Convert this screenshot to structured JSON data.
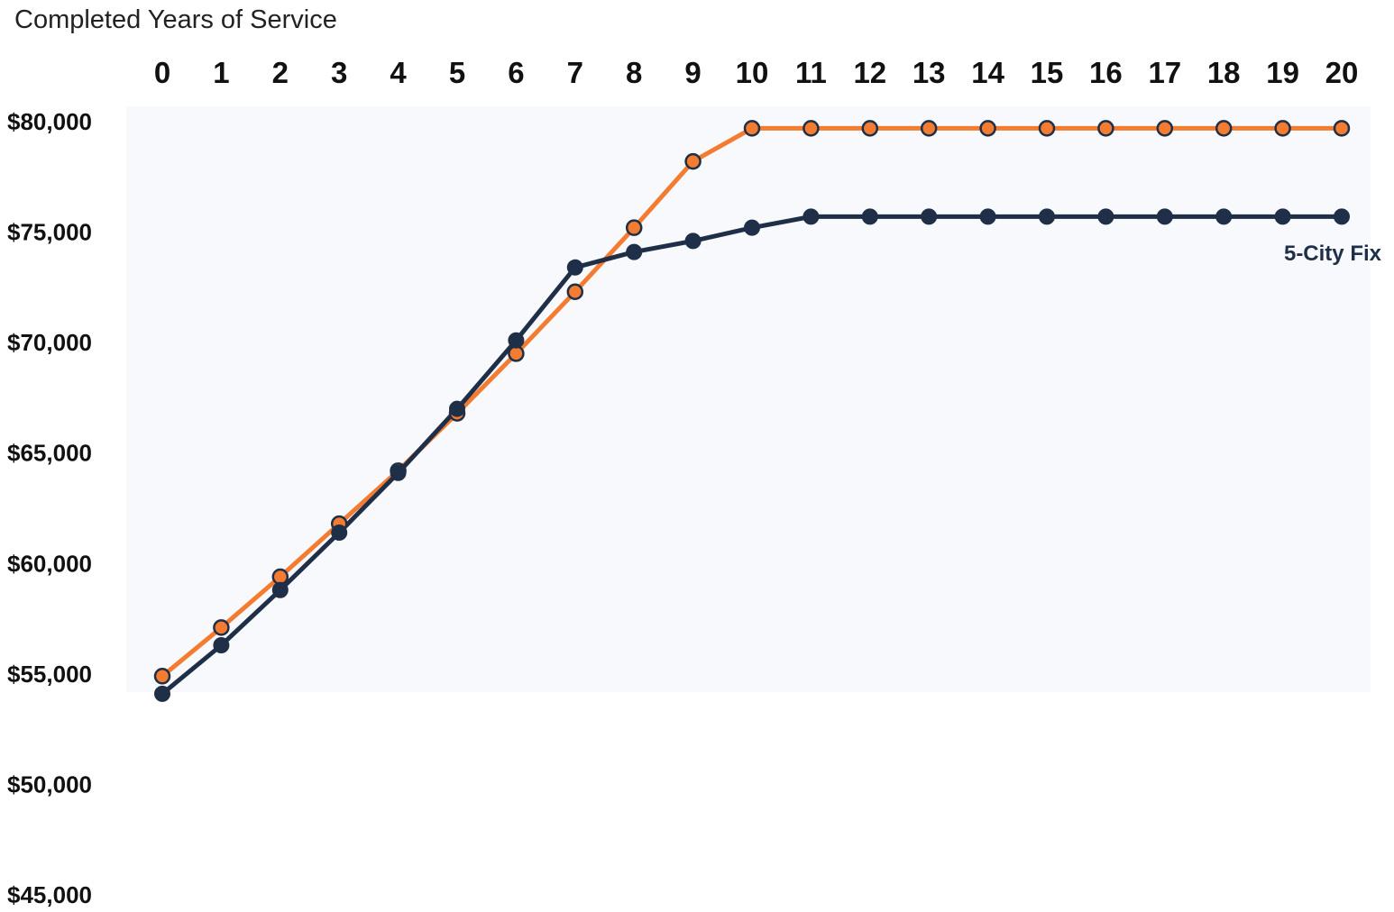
{
  "chart_data": {
    "type": "line",
    "xlabel": "Completed Years of Service",
    "x": [
      0,
      1,
      2,
      3,
      4,
      5,
      6,
      7,
      8,
      9,
      10,
      11,
      12,
      13,
      14,
      15,
      16,
      17,
      18,
      19,
      20
    ],
    "x_tick_labels": [
      "0",
      "1",
      "2",
      "3",
      "4",
      "5",
      "6",
      "7",
      "8",
      "9",
      "10",
      "11",
      "12",
      "13",
      "14",
      "15",
      "16",
      "17",
      "18",
      "19",
      "20"
    ],
    "y_tick_labels": [
      "$80,000",
      "$75,000",
      "$70,000",
      "$65,000",
      "$60,000",
      "$55,000",
      "$50,000",
      "$45,000"
    ],
    "y_ticks": [
      80000,
      75000,
      70000,
      65000,
      60000,
      55000,
      50000,
      45000
    ],
    "ylim": [
      45000,
      80000
    ],
    "x_axis_position": "top",
    "grid": false,
    "series": [
      {
        "name": "",
        "color": "#f47c30",
        "marker": "open-circle",
        "values": [
          54900,
          57100,
          59400,
          61800,
          64200,
          66800,
          69500,
          72300,
          75200,
          78200,
          79700,
          79700,
          79700,
          79700,
          79700,
          79700,
          79700,
          79700,
          79700,
          79700,
          79700
        ]
      },
      {
        "name": "5-City Fix",
        "color": "#1f2f48",
        "marker": "filled-circle",
        "values": [
          54100,
          56300,
          58800,
          61400,
          64100,
          67000,
          70100,
          73400,
          74100,
          74600,
          75200,
          75700,
          75700,
          75700,
          75700,
          75700,
          75700,
          75700,
          75700,
          75700,
          75700
        ]
      }
    ],
    "series_label": "5-City Fix",
    "colors": {
      "plot_background": "#f7f9fc"
    }
  }
}
